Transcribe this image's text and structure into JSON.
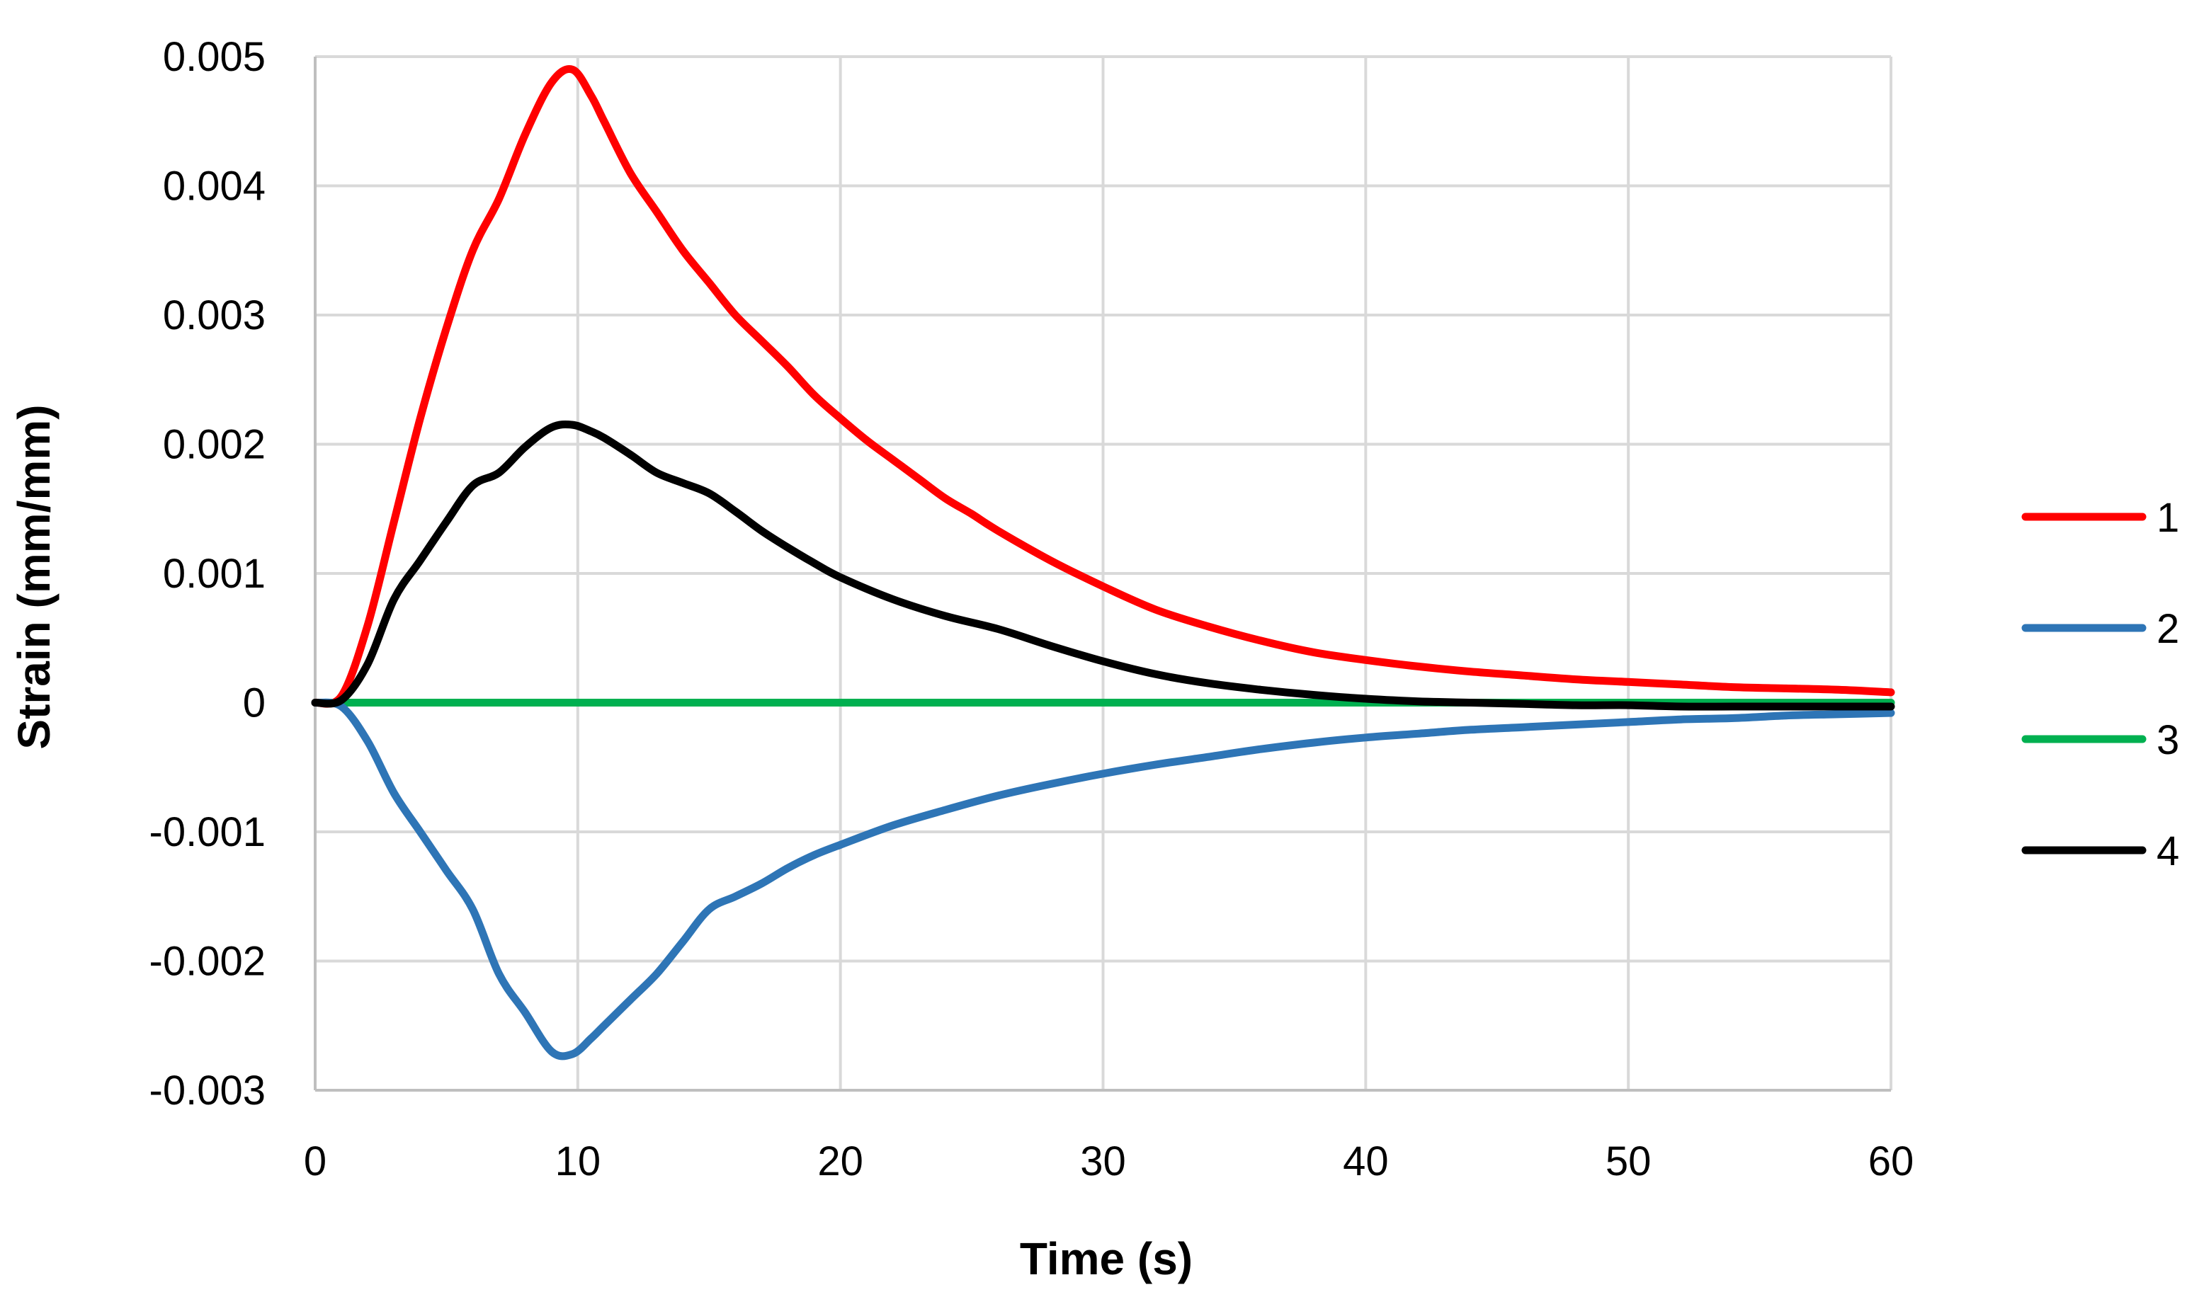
{
  "chart_data": {
    "type": "line",
    "title": "",
    "xlabel": "Time (s)",
    "ylabel": "Strain (mm/mm)",
    "xlim": [
      0,
      60
    ],
    "ylim": [
      -0.003,
      0.005
    ],
    "x_ticks": [
      0,
      10,
      20,
      30,
      40,
      50,
      60
    ],
    "x_tick_labels": [
      "0",
      "10",
      "20",
      "30",
      "40",
      "50",
      "60"
    ],
    "y_ticks": [
      -0.003,
      -0.002,
      -0.001,
      0,
      0.001,
      0.002,
      0.003,
      0.004,
      0.005
    ],
    "y_tick_labels": [
      "-0.003",
      "-0.002",
      "-0.001",
      "0",
      "0.001",
      "0.002",
      "0.003",
      "0.004",
      "0.005"
    ],
    "grid": true,
    "legend_position": "right",
    "series": [
      {
        "name": "1",
        "color": "#ff0000",
        "x": [
          0,
          1,
          2,
          3,
          4,
          5,
          6,
          7,
          8,
          9,
          9.8,
          10.5,
          11,
          12,
          13,
          14,
          15,
          16,
          17,
          18,
          19,
          20,
          21,
          22,
          23,
          24,
          25,
          26,
          28,
          30,
          32,
          34,
          36,
          38,
          40,
          42,
          44,
          46,
          48,
          50,
          52,
          54,
          56,
          58,
          60
        ],
        "y": [
          0,
          5e-05,
          0.0006,
          0.0014,
          0.0022,
          0.0029,
          0.0035,
          0.0039,
          0.0044,
          0.0048,
          0.0049,
          0.0047,
          0.0045,
          0.0041,
          0.0038,
          0.0035,
          0.00325,
          0.003,
          0.0028,
          0.0026,
          0.00238,
          0.0022,
          0.00203,
          0.00188,
          0.00173,
          0.00158,
          0.00146,
          0.00133,
          0.0011,
          0.0009,
          0.00072,
          0.00059,
          0.00048,
          0.00039,
          0.00033,
          0.00028,
          0.00024,
          0.00021,
          0.00018,
          0.00016,
          0.00014,
          0.00012,
          0.00011,
          0.0001,
          8e-05
        ]
      },
      {
        "name": "2",
        "color": "#2e75b6",
        "x": [
          0,
          1,
          2,
          3,
          4,
          5,
          6,
          7,
          8,
          9,
          9.8,
          10.5,
          11,
          12,
          13,
          14,
          15,
          16,
          17,
          18,
          19,
          20,
          22,
          24,
          26,
          28,
          30,
          32,
          34,
          36,
          38,
          40,
          42,
          44,
          46,
          48,
          50,
          52,
          54,
          56,
          58,
          60
        ],
        "y": [
          0,
          -3e-05,
          -0.0003,
          -0.0007,
          -0.001,
          -0.0013,
          -0.0016,
          -0.0021,
          -0.0024,
          -0.0027,
          -0.00272,
          -0.0026,
          -0.0025,
          -0.0023,
          -0.0021,
          -0.00185,
          -0.0016,
          -0.0015,
          -0.0014,
          -0.00128,
          -0.00118,
          -0.0011,
          -0.00095,
          -0.00083,
          -0.00072,
          -0.00063,
          -0.00055,
          -0.00048,
          -0.00042,
          -0.00036,
          -0.00031,
          -0.00027,
          -0.00024,
          -0.00021,
          -0.00019,
          -0.00017,
          -0.00015,
          -0.00013,
          -0.00012,
          -0.0001,
          -9e-05,
          -8e-05
        ]
      },
      {
        "name": "3",
        "color": "#00b050",
        "x": [
          0,
          60
        ],
        "y": [
          0,
          0
        ]
      },
      {
        "name": "4",
        "color": "#000000",
        "x": [
          0,
          1,
          2,
          3,
          4,
          5,
          6,
          7,
          8,
          9,
          9.8,
          10.5,
          11,
          12,
          13,
          14,
          15,
          16,
          17,
          18,
          19,
          20,
          22,
          24,
          26,
          28,
          30,
          32,
          34,
          36,
          38,
          40,
          42,
          44,
          46,
          48,
          50,
          52,
          54,
          56,
          58,
          60
        ],
        "y": [
          0,
          2e-05,
          0.0003,
          0.0008,
          0.0011,
          0.0014,
          0.00168,
          0.00178,
          0.00198,
          0.00213,
          0.00215,
          0.0021,
          0.00205,
          0.00192,
          0.00178,
          0.0017,
          0.00162,
          0.00148,
          0.00133,
          0.0012,
          0.00108,
          0.00097,
          0.0008,
          0.00067,
          0.00057,
          0.00044,
          0.00032,
          0.00022,
          0.00015,
          0.0001,
          6e-05,
          3e-05,
          1e-05,
          0,
          -1e-05,
          -2e-05,
          -2e-05,
          -3e-05,
          -3e-05,
          -3e-05,
          -3e-05,
          -3e-05
        ]
      }
    ]
  }
}
